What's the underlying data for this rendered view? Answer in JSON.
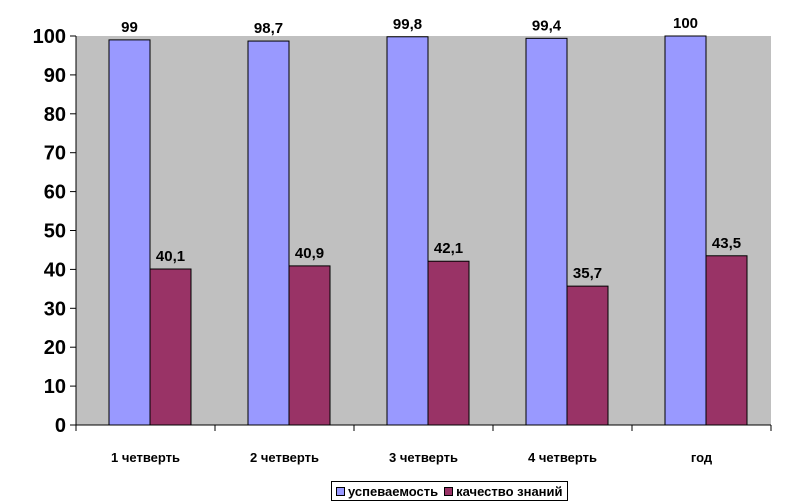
{
  "chart_data": {
    "type": "bar",
    "categories": [
      "1 четверть",
      "2 четверть",
      "3 четверть",
      "4 четверть",
      "год"
    ],
    "series": [
      {
        "name": "успеваемость",
        "values": [
          99,
          98.7,
          99.8,
          99.4,
          100
        ],
        "labels": [
          "99",
          "98,7",
          "99,8",
          "99,4",
          "100"
        ],
        "color": "#9999FF"
      },
      {
        "name": "качество знаний",
        "values": [
          40.1,
          40.9,
          42.1,
          35.7,
          43.5
        ],
        "labels": [
          "40,1",
          "40,9",
          "42,1",
          "35,7",
          "43,5"
        ],
        "color": "#993366"
      }
    ],
    "ylim": [
      0,
      100
    ],
    "yticks": [
      0,
      10,
      20,
      30,
      40,
      50,
      60,
      70,
      80,
      90,
      100
    ],
    "plot_background": "#C0C0C0",
    "grid": false,
    "legend_position": "bottom"
  }
}
